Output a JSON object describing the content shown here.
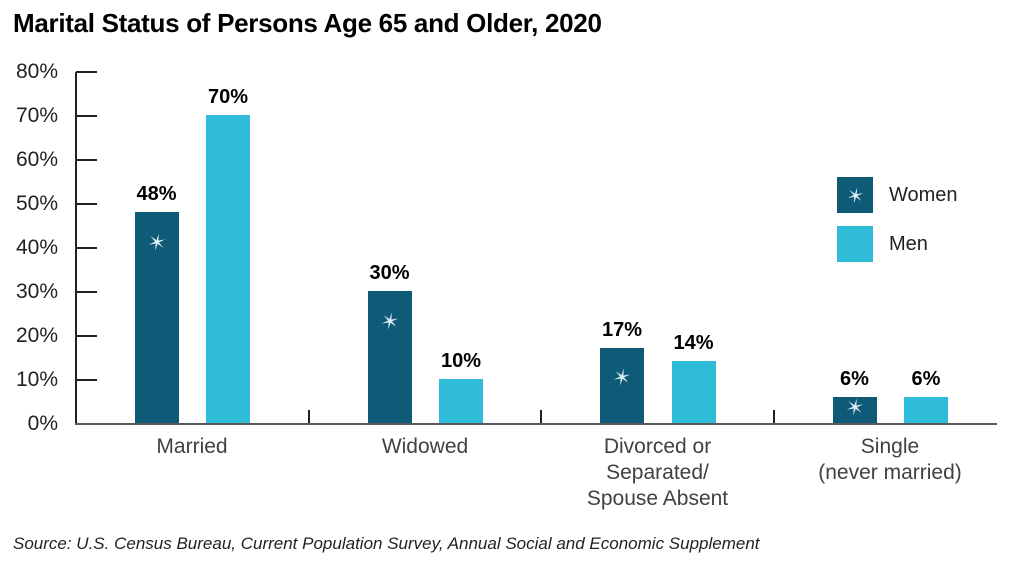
{
  "source_note": "Source: U.S. Census Bureau, Current Population Survey, Annual Social and Economic Supplement",
  "chart_data": {
    "type": "bar",
    "title": "Marital Status of Persons Age 65 and Older, 2020",
    "categories": [
      "Married",
      "Widowed",
      "Divorced or\nSeparated/\nSpouse Absent",
      "Single\n(never married)"
    ],
    "series": [
      {
        "name": "Women",
        "color": "#0f5b77",
        "values": [
          48,
          30,
          17,
          6
        ],
        "marker": "asterisk",
        "marker_color": "#ddeef5"
      },
      {
        "name": "Men",
        "color": "#2fbcd9",
        "values": [
          70,
          10,
          14,
          6
        ],
        "marker": null,
        "marker_color": null
      }
    ],
    "value_labels": [
      [
        "48%",
        "30%",
        "17%",
        "6%"
      ],
      [
        "70%",
        "10%",
        "14%",
        "6%"
      ]
    ],
    "ylabel": "",
    "xlabel": "",
    "ylim": [
      0,
      80
    ],
    "ytick_step": 10,
    "ytick_labels": [
      "0%",
      "10%",
      "20%",
      "30%",
      "40%",
      "50%",
      "60%",
      "70%",
      "80%"
    ],
    "grid": false,
    "legend_position": "right",
    "legend": [
      "Women",
      "Men"
    ]
  }
}
